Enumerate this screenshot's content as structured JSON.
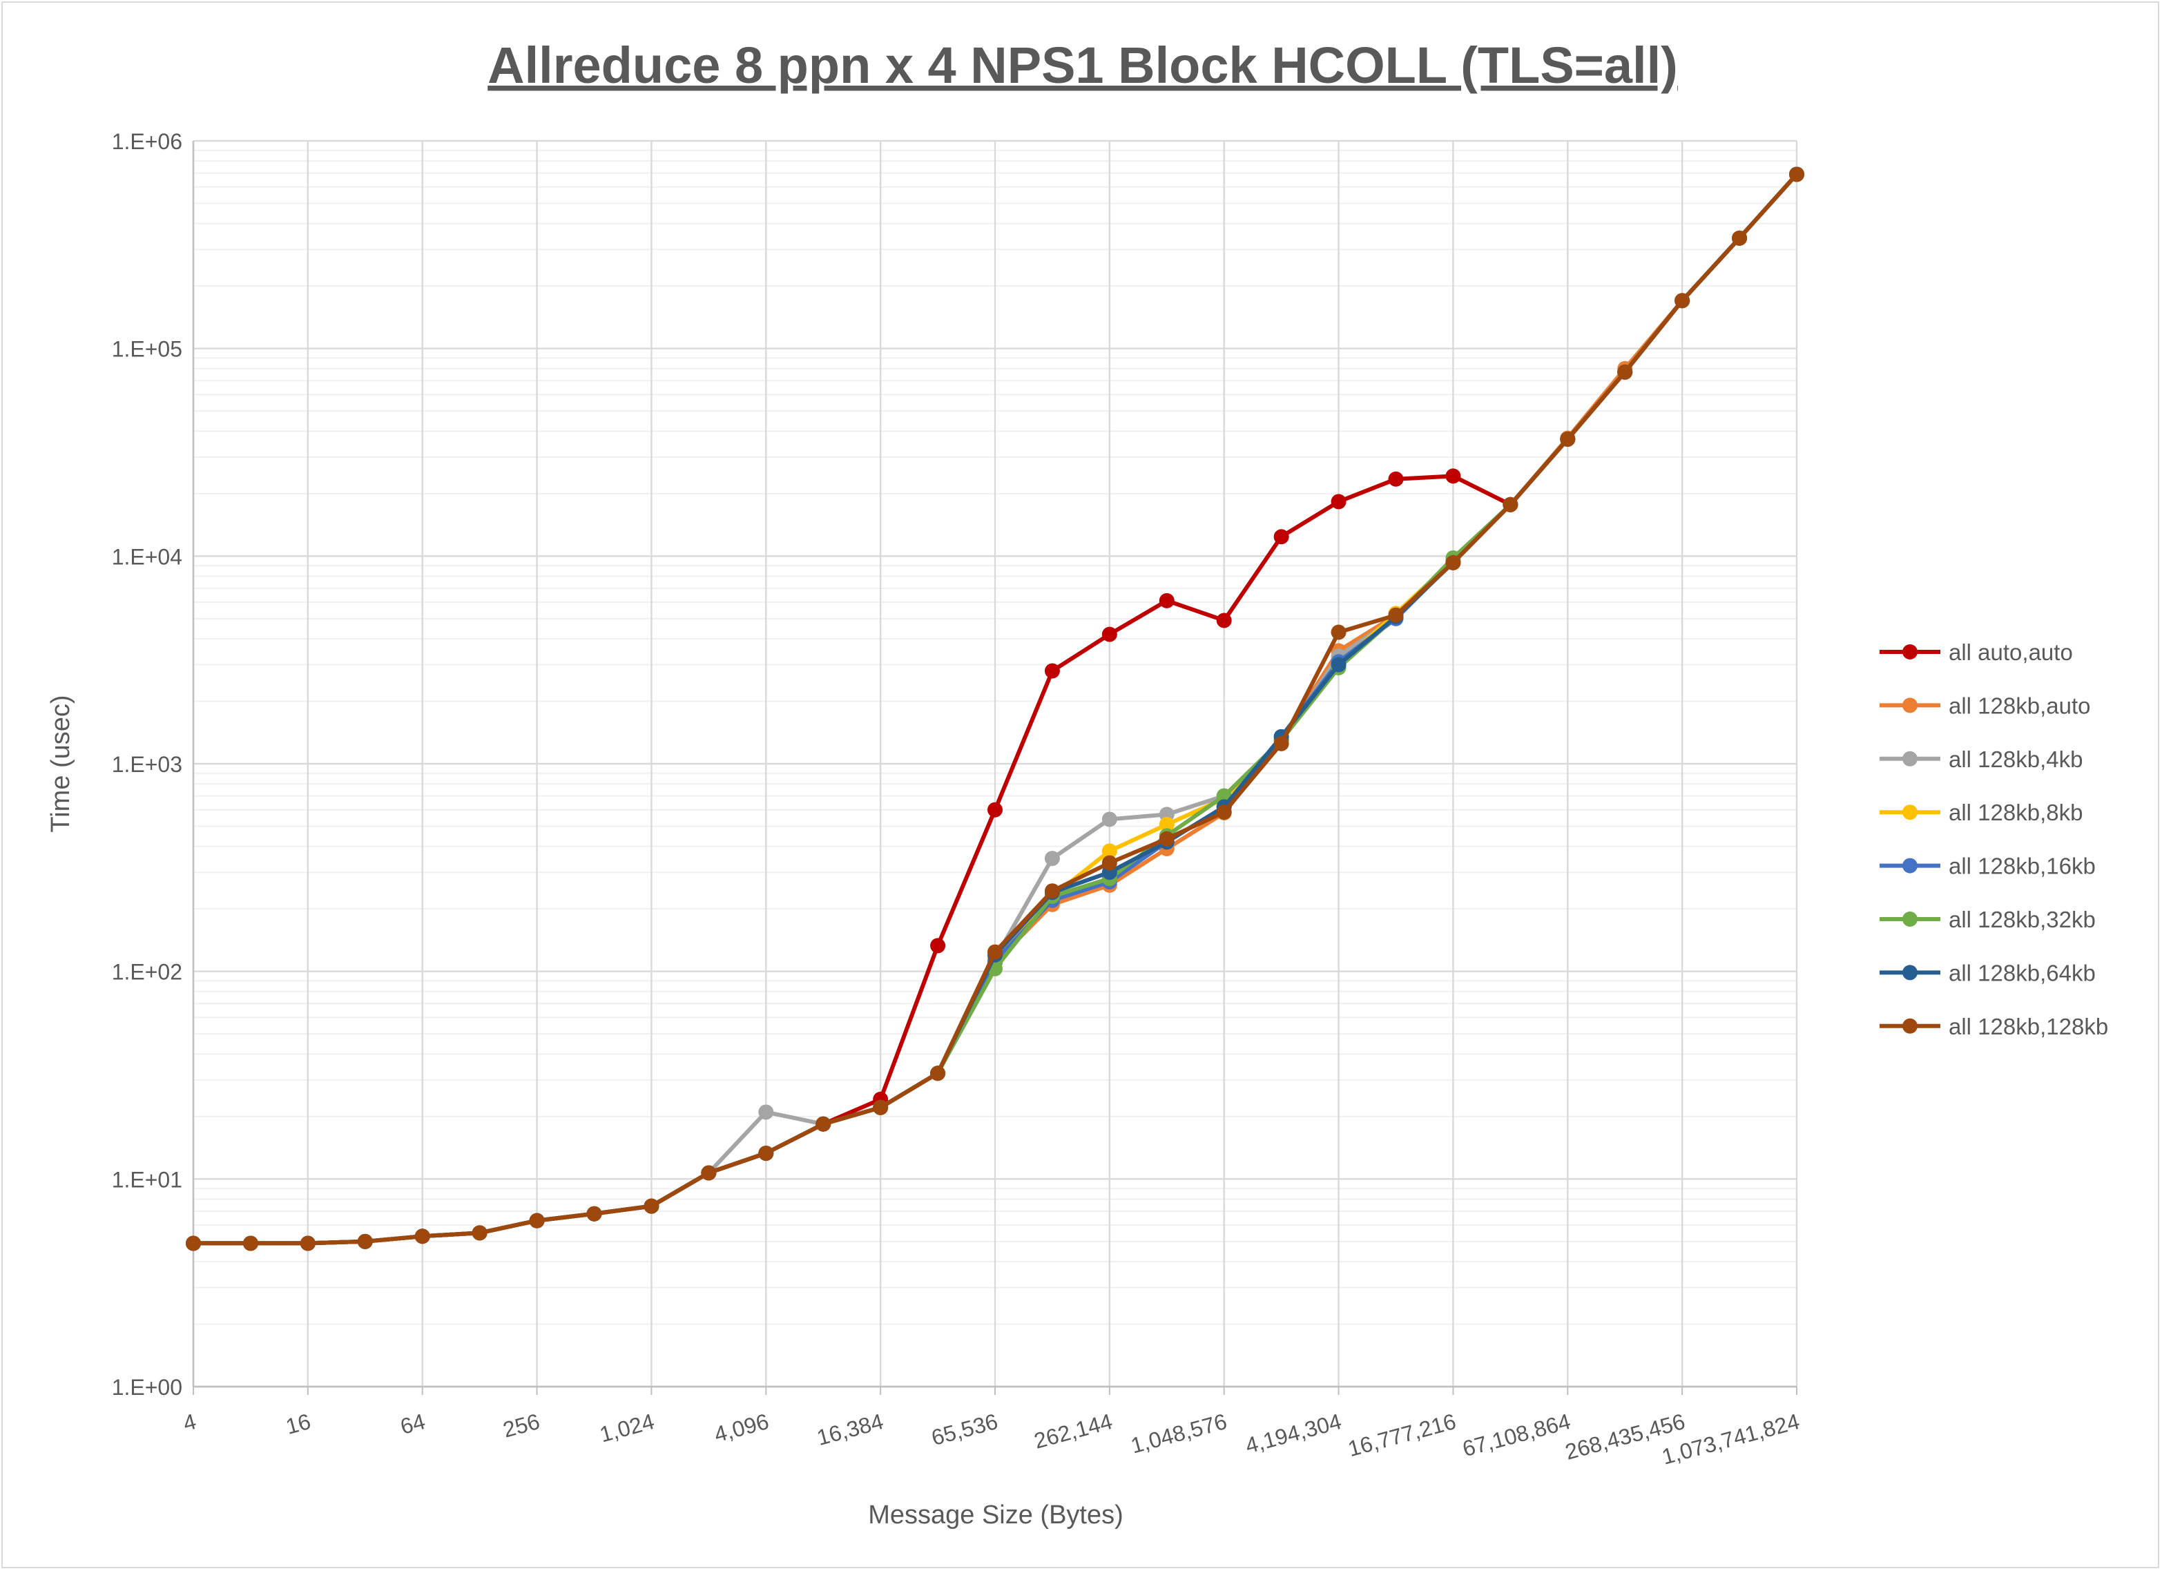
{
  "chart_data": {
    "type": "line",
    "title": "Allreduce 8 ppn x 4 NPS1 Block HCOLL (TLS=all)",
    "xlabel": "Message Size (Bytes)",
    "ylabel": "Time (usec)",
    "x_scale": "log2",
    "y_scale": "log10",
    "ylim": [
      1,
      1000000
    ],
    "grid": true,
    "legend_position": "right",
    "x": [
      4,
      8,
      16,
      32,
      64,
      128,
      256,
      512,
      1024,
      2048,
      4096,
      8192,
      16384,
      32768,
      65536,
      131072,
      262144,
      524288,
      1048576,
      2097152,
      4194304,
      8388608,
      16777216,
      33554432,
      67108864,
      134217728,
      268435456,
      536870912,
      1073741824
    ],
    "x_tick_labels": [
      "4",
      "16",
      "64",
      "256",
      "1,024",
      "4,096",
      "16,384",
      "65,536",
      "262,144",
      "1,048,576",
      "4,194,304",
      "16,777,216",
      "67,108,864",
      "268,435,456",
      "1,073,741,824"
    ],
    "y_tick_labels": [
      "1.E+00",
      "1.E+01",
      "1.E+02",
      "1.E+03",
      "1.E+04",
      "1.E+05",
      "1.E+06"
    ],
    "series": [
      {
        "name": "all auto,auto",
        "color": "#c00000",
        "values": [
          4.9,
          4.9,
          4.9,
          5.0,
          5.3,
          5.5,
          6.3,
          6.8,
          7.4,
          10.7,
          13.3,
          18.4,
          24.2,
          133,
          600,
          2800,
          4200,
          6100,
          4900,
          12400,
          18300,
          23500,
          24300,
          17700,
          36600,
          77000,
          170000,
          340000,
          690000
        ]
      },
      {
        "name": "all 128kb,auto",
        "color": "#ed7d31",
        "values": [
          4.9,
          4.9,
          4.9,
          5.0,
          5.3,
          5.5,
          6.3,
          6.8,
          7.4,
          10.7,
          13.3,
          18.4,
          22.1,
          32.3,
          110,
          210,
          260,
          390,
          580,
          1300,
          3500,
          5200,
          9300,
          17700,
          37000,
          80000,
          170000,
          340000,
          690000
        ]
      },
      {
        "name": "all 128kb,4kb",
        "color": "#a5a5a5",
        "values": [
          4.9,
          4.9,
          4.9,
          5.0,
          5.3,
          5.5,
          6.3,
          6.8,
          7.4,
          10.7,
          21,
          18.4,
          22.1,
          32.3,
          115,
          350,
          540,
          570,
          700,
          1300,
          3300,
          5100,
          9400,
          17700,
          36600,
          77000,
          170000,
          340000,
          690000
        ]
      },
      {
        "name": "all 128kb,8kb",
        "color": "#ffc000",
        "values": [
          4.9,
          4.9,
          4.9,
          5.0,
          5.3,
          5.5,
          6.3,
          6.8,
          7.4,
          10.7,
          13.3,
          18.4,
          22.1,
          32.3,
          115,
          230,
          380,
          510,
          680,
          1300,
          3000,
          5300,
          9500,
          17700,
          36600,
          77000,
          170000,
          340000,
          690000
        ]
      },
      {
        "name": "all 128kb,16kb",
        "color": "#4472c4",
        "values": [
          4.9,
          4.9,
          4.9,
          5.0,
          5.3,
          5.5,
          6.3,
          6.8,
          7.4,
          10.7,
          13.3,
          18.4,
          22.1,
          32.3,
          112,
          220,
          270,
          420,
          620,
          1350,
          3100,
          5000,
          9400,
          17700,
          36600,
          77000,
          170000,
          340000,
          690000
        ]
      },
      {
        "name": "all 128kb,32kb",
        "color": "#70ad47",
        "values": [
          4.9,
          4.9,
          4.9,
          5.0,
          5.3,
          5.5,
          6.3,
          6.8,
          7.4,
          10.7,
          13.3,
          18.4,
          22.1,
          32.3,
          103,
          230,
          280,
          450,
          700,
          1300,
          2900,
          5100,
          9800,
          17700,
          36600,
          77000,
          170000,
          340000,
          690000
        ]
      },
      {
        "name": "all 128kb,64kb",
        "color": "#255e91",
        "values": [
          4.9,
          4.9,
          4.9,
          5.0,
          5.3,
          5.5,
          6.3,
          6.8,
          7.4,
          10.7,
          13.3,
          18.4,
          22.1,
          32.3,
          120,
          240,
          300,
          420,
          620,
          1350,
          3000,
          5100,
          9300,
          17700,
          36600,
          77000,
          170000,
          340000,
          690000
        ]
      },
      {
        "name": "all 128kb,128kb",
        "color": "#9e480e",
        "values": [
          4.9,
          4.9,
          4.9,
          5.0,
          5.3,
          5.5,
          6.3,
          6.8,
          7.4,
          10.7,
          13.3,
          18.4,
          22.1,
          32.3,
          124,
          244,
          333,
          435,
          585,
          1250,
          4300,
          5200,
          9300,
          17700,
          36600,
          77000,
          170000,
          340000,
          690000
        ]
      }
    ]
  }
}
